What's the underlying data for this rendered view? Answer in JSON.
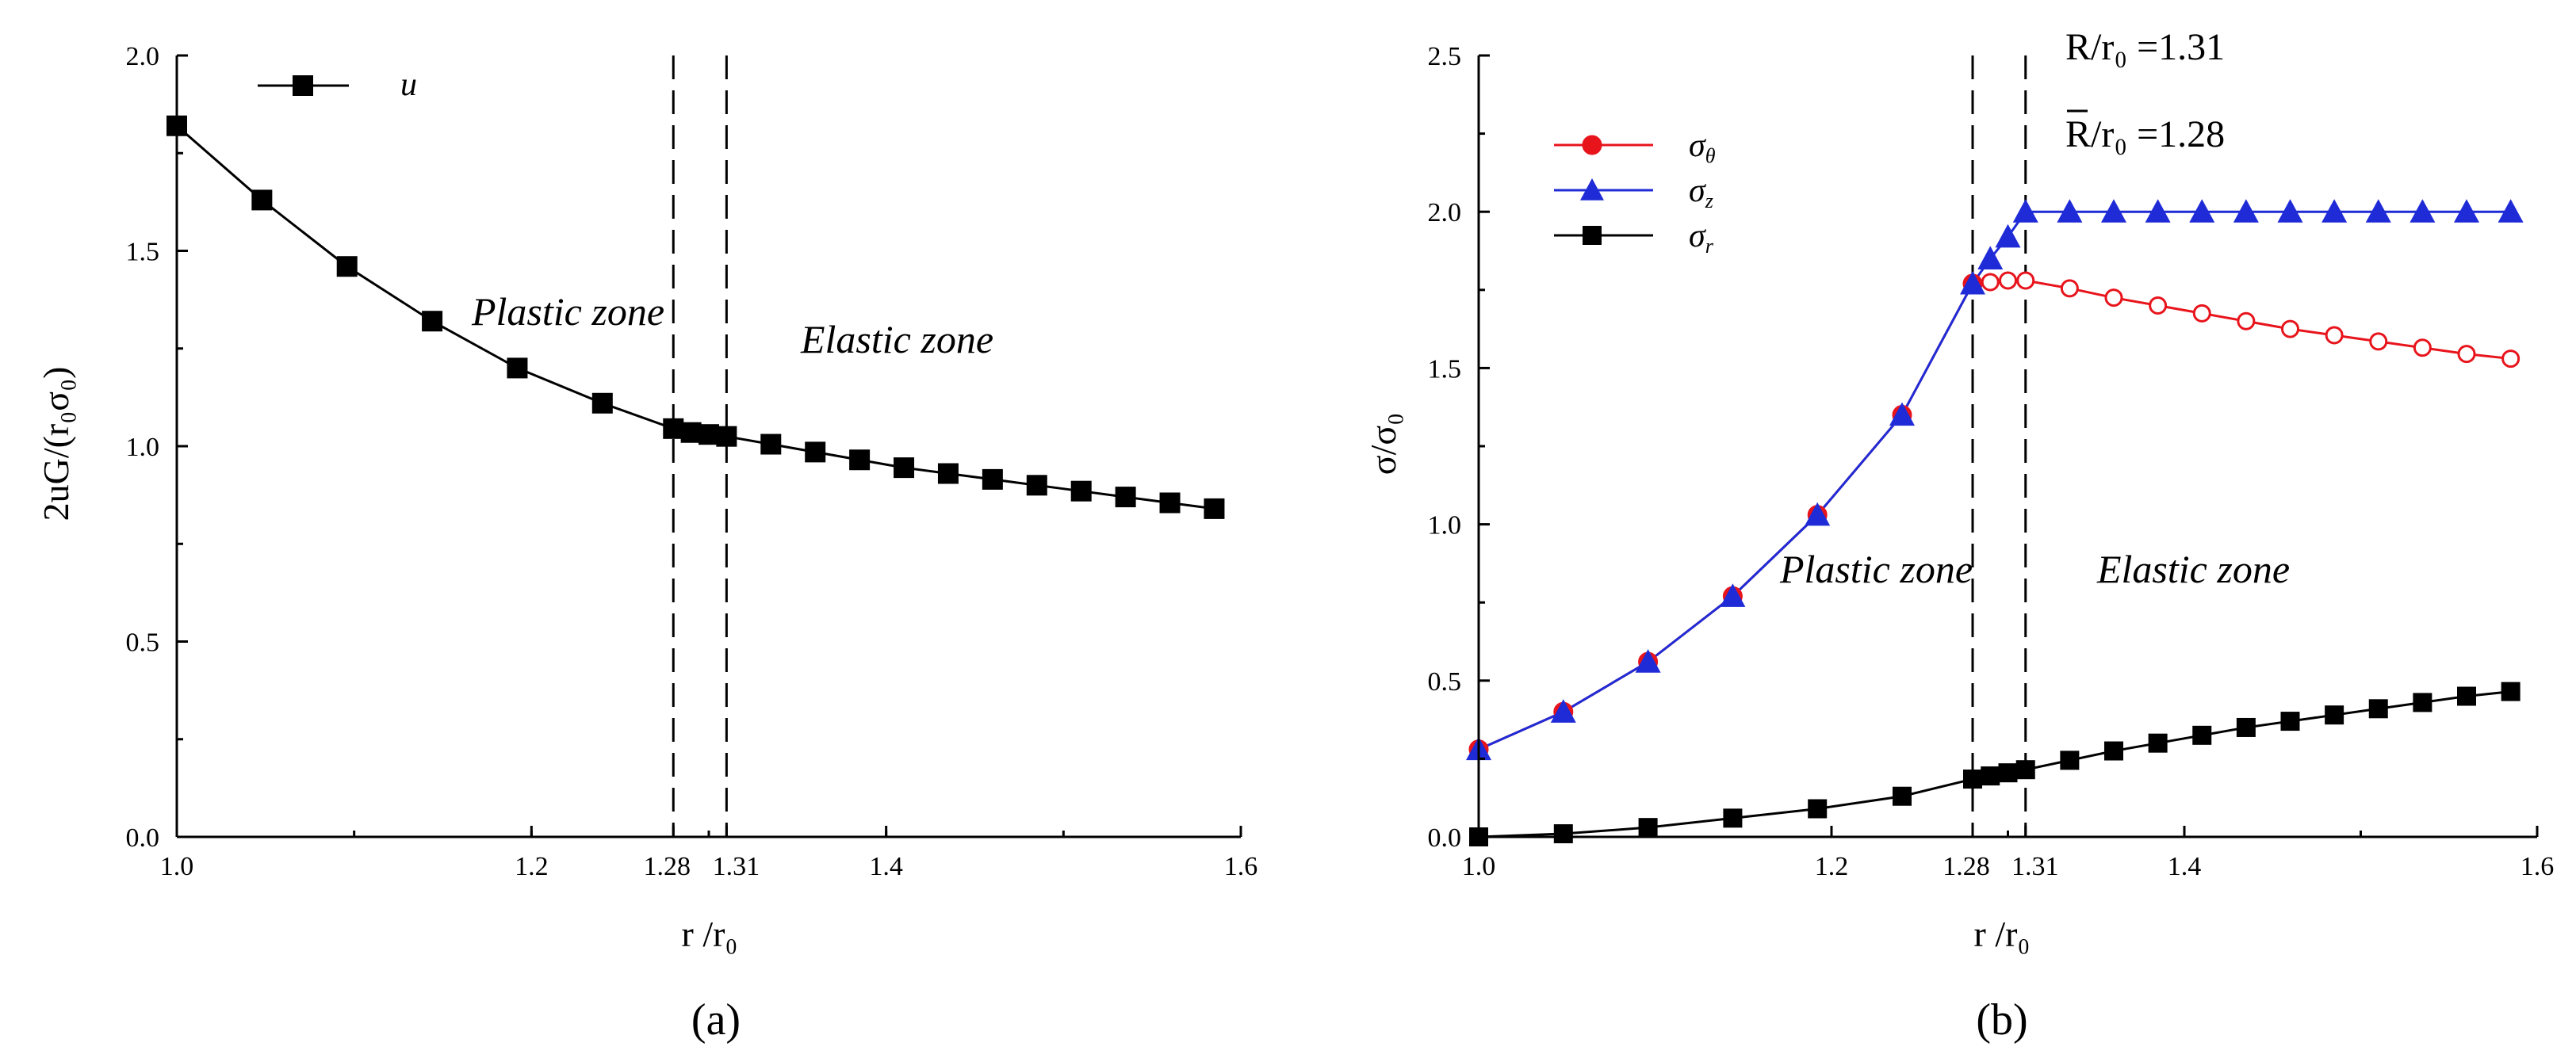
{
  "chart_data": [
    {
      "type": "line",
      "panel_label": "(a)",
      "ylabel": "2uG/(r₀σ₀)",
      "xlabel": "r /r₀",
      "xlim": [
        1.0,
        1.6
      ],
      "ylim": [
        0.0,
        2.0
      ],
      "x_ticks": [
        "1.0",
        "1.2",
        "1.28",
        "1.31",
        "1.4",
        "1.6"
      ],
      "x_tick_values": [
        1.0,
        1.2,
        1.28,
        1.31,
        1.4,
        1.6
      ],
      "y_ticks": [
        "0.0",
        "0.5",
        "1.0",
        "1.5",
        "2.0"
      ],
      "y_tick_values": [
        0.0,
        0.5,
        1.0,
        1.5,
        2.0
      ],
      "vlines": [
        1.28,
        1.31
      ],
      "annotations": [
        "Plastic zone",
        "Elastic zone"
      ],
      "series": [
        {
          "name": "u",
          "color": "#000000",
          "marker": "square",
          "x": [
            1.0,
            1.048,
            1.096,
            1.144,
            1.192,
            1.24,
            1.28,
            1.29,
            1.3,
            1.31,
            1.335,
            1.36,
            1.385,
            1.41,
            1.435,
            1.46,
            1.485,
            1.51,
            1.535,
            1.56,
            1.585
          ],
          "y": [
            1.82,
            1.63,
            1.46,
            1.32,
            1.2,
            1.11,
            1.045,
            1.035,
            1.03,
            1.025,
            1.005,
            0.985,
            0.965,
            0.945,
            0.93,
            0.915,
            0.9,
            0.885,
            0.87,
            0.855,
            0.84
          ]
        }
      ]
    },
    {
      "type": "line",
      "panel_label": "(b)",
      "ylabel": "σ/σ₀",
      "xlabel": "r /r₀",
      "xlim": [
        1.0,
        1.6
      ],
      "ylim": [
        0.0,
        2.5
      ],
      "x_ticks": [
        "1.0",
        "1.2",
        "1.28",
        "1.31",
        "1.4",
        "1.6"
      ],
      "x_tick_values": [
        1.0,
        1.2,
        1.28,
        1.31,
        1.4,
        1.6
      ],
      "y_ticks": [
        "0.0",
        "0.5",
        "1.0",
        "1.5",
        "2.0",
        "2.5"
      ],
      "y_tick_values": [
        0.0,
        0.5,
        1.0,
        1.5,
        2.0,
        2.5
      ],
      "vlines": [
        1.28,
        1.31
      ],
      "annotations": [
        "Plastic zone",
        "Elastic zone"
      ],
      "radius_labels": [
        "R/r₀ =1.31",
        "R/r₀ =1.28"
      ],
      "series": [
        {
          "name": "σθ",
          "symbol": "σ",
          "subscript": "θ",
          "color": "#e8141c",
          "marker": "circle",
          "x": [
            1.0,
            1.048,
            1.096,
            1.144,
            1.192,
            1.24,
            1.28,
            1.29,
            1.3,
            1.31,
            1.335,
            1.36,
            1.385,
            1.41,
            1.435,
            1.46,
            1.485,
            1.51,
            1.535,
            1.56,
            1.585
          ],
          "y": [
            0.28,
            0.4,
            0.56,
            0.77,
            1.03,
            1.35,
            1.77,
            1.775,
            1.78,
            1.78,
            1.755,
            1.725,
            1.7,
            1.675,
            1.65,
            1.625,
            1.605,
            1.585,
            1.565,
            1.545,
            1.53
          ]
        },
        {
          "name": "σz",
          "symbol": "σ",
          "subscript": "z",
          "color": "#1f2bd6",
          "marker": "triangle",
          "x": [
            1.0,
            1.048,
            1.096,
            1.144,
            1.192,
            1.24,
            1.28,
            1.29,
            1.3,
            1.31,
            1.335,
            1.36,
            1.385,
            1.41,
            1.435,
            1.46,
            1.485,
            1.51,
            1.535,
            1.56,
            1.585
          ],
          "y": [
            0.28,
            0.4,
            0.56,
            0.77,
            1.03,
            1.35,
            1.77,
            1.85,
            1.92,
            2.0,
            2.0,
            2.0,
            2.0,
            2.0,
            2.0,
            2.0,
            2.0,
            2.0,
            2.0,
            2.0,
            2.0
          ]
        },
        {
          "name": "σr",
          "symbol": "σ",
          "subscript": "r",
          "color": "#000000",
          "marker": "square",
          "x": [
            1.0,
            1.048,
            1.096,
            1.144,
            1.192,
            1.24,
            1.28,
            1.29,
            1.3,
            1.31,
            1.335,
            1.36,
            1.385,
            1.41,
            1.435,
            1.46,
            1.485,
            1.51,
            1.535,
            1.56,
            1.585
          ],
          "y": [
            0.0,
            0.01,
            0.03,
            0.06,
            0.09,
            0.13,
            0.185,
            0.195,
            0.205,
            0.215,
            0.245,
            0.275,
            0.3,
            0.325,
            0.35,
            0.37,
            0.39,
            0.41,
            0.43,
            0.45,
            0.465
          ]
        }
      ]
    }
  ]
}
